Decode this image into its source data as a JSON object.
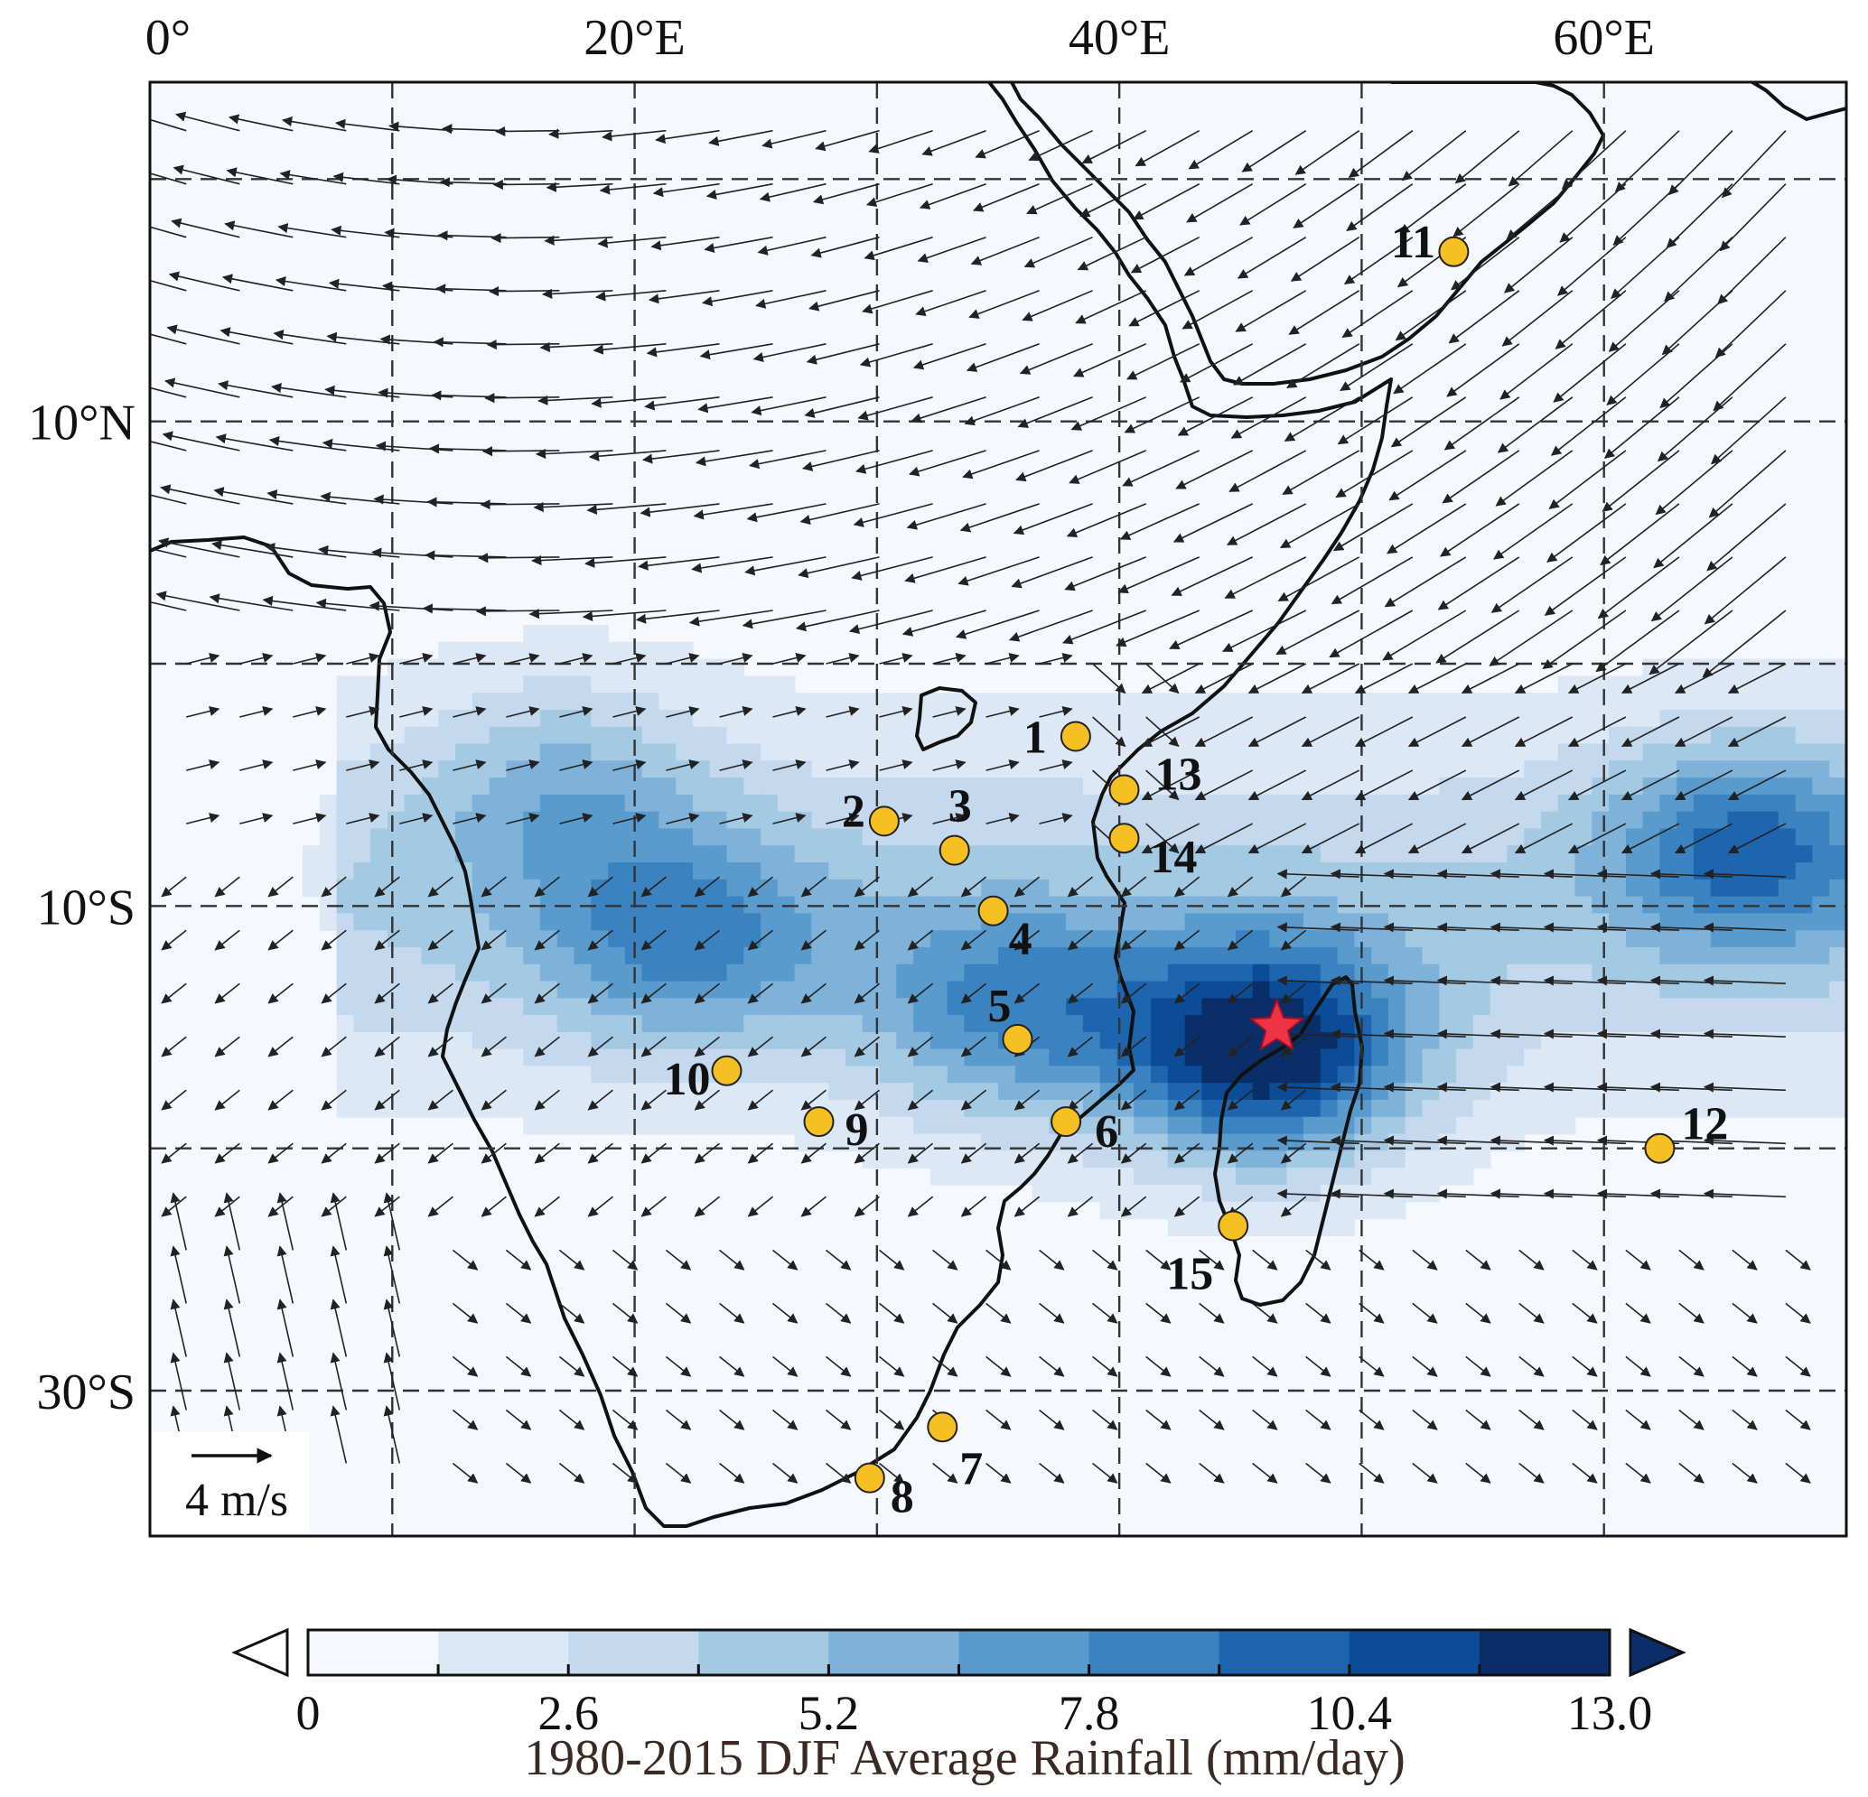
{
  "map": {
    "lon_range": [
      0,
      70
    ],
    "lat_range": [
      -36,
      24
    ],
    "grid_lons": [
      10,
      20,
      30,
      40,
      50,
      60
    ],
    "grid_lats": [
      20,
      10,
      0,
      -10,
      -20,
      -30
    ],
    "lon_tick_labels": [
      {
        "lon": 0,
        "text": "0°"
      },
      {
        "lon": 20,
        "text": "20°E"
      },
      {
        "lon": 40,
        "text": "40°E"
      },
      {
        "lon": 60,
        "text": "60°E"
      }
    ],
    "lat_tick_labels": [
      {
        "lat": 10,
        "text": "10°N"
      },
      {
        "lat": -10,
        "text": "10°S"
      },
      {
        "lat": -30,
        "text": "30°S"
      }
    ],
    "reference_vector": {
      "text": "4 m/s"
    },
    "sites": [
      {
        "id": "1",
        "lon": 38.2,
        "lat": -3.0
      },
      {
        "id": "2",
        "lon": 30.3,
        "lat": -6.5
      },
      {
        "id": "3",
        "lon": 33.2,
        "lat": -7.7
      },
      {
        "id": "4",
        "lon": 34.8,
        "lat": -10.2
      },
      {
        "id": "5",
        "lon": 35.8,
        "lat": -15.5
      },
      {
        "id": "6",
        "lon": 37.8,
        "lat": -18.9
      },
      {
        "id": "7",
        "lon": 32.7,
        "lat": -31.5
      },
      {
        "id": "8",
        "lon": 29.7,
        "lat": -33.6
      },
      {
        "id": "9",
        "lon": 27.6,
        "lat": -18.9
      },
      {
        "id": "10",
        "lon": 23.8,
        "lat": -16.8
      },
      {
        "id": "11",
        "lon": 53.8,
        "lat": 17.0
      },
      {
        "id": "12",
        "lon": 62.3,
        "lat": -20.0
      },
      {
        "id": "13",
        "lon": 40.2,
        "lat": -5.2
      },
      {
        "id": "14",
        "lon": 40.2,
        "lat": -7.2
      },
      {
        "id": "15",
        "lon": 44.7,
        "lat": -23.2
      }
    ],
    "star": {
      "lon": 46.5,
      "lat": -15.0,
      "color": "#ee3344"
    },
    "site_color": "#f7c022"
  },
  "colorbar": {
    "levels": [
      0,
      1.3,
      2.6,
      3.9,
      5.2,
      6.5,
      7.8,
      9.1,
      10.4,
      11.7,
      13.0
    ],
    "tick_labels": [
      "0",
      "2.6",
      "5.2",
      "7.8",
      "10.4",
      "13.0"
    ],
    "colors": [
      "#f5f9fe",
      "#dce8f6",
      "#c4d9ee",
      "#a3c9e3",
      "#7eb2d9",
      "#5a9bcd",
      "#3b82c0",
      "#1d65ae",
      "#0c4c97",
      "#0a2f68"
    ],
    "under_color": "#ffffff",
    "over_color": "#0a2f68",
    "title": "1980-2015 DJF Average Rainfall (mm/day)"
  },
  "chart_data": {
    "type": "heatmap",
    "variable": "1980-2015 DJF Average Rainfall (mm/day)",
    "range": [
      0,
      13.0
    ],
    "rain_centers": [
      {
        "lon": 46.0,
        "lat": -16.0,
        "amp": 11.5
      },
      {
        "lon": 22.0,
        "lat": -11.5,
        "amp": 5.0
      },
      {
        "lon": 35.5,
        "lat": -14.5,
        "amp": 5.5
      },
      {
        "lon": 66.0,
        "lat": -7.5,
        "amp": 6.5
      },
      {
        "lon": 17.0,
        "lat": -5.0,
        "amp": 3.5
      }
    ]
  }
}
